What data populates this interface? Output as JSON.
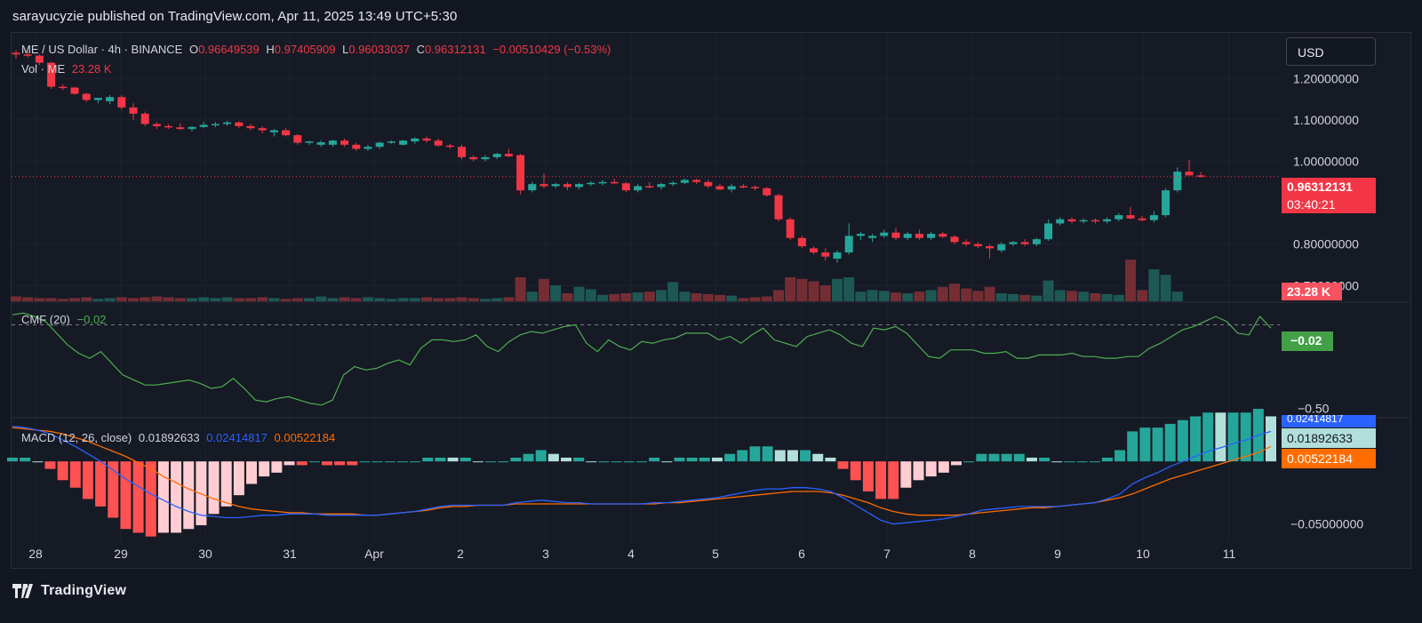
{
  "header": {
    "publisher": "sarayucyzie published on TradingView.com, Apr 11, 2025 13:49 UTC+5:30",
    "brand": "TradingView"
  },
  "controls": {
    "currency_label": "USD"
  },
  "legend": {
    "symbol": "ME / US Dollar · 4h · BINANCE",
    "o_label": "O",
    "o_value": "0.96649539",
    "h_label": "H",
    "h_value": "0.97405909",
    "l_label": "L",
    "l_value": "0.96033037",
    "c_label": "C",
    "c_value": "0.96312131",
    "change": "−0.00510429 (−0.53%)",
    "vol_label": "Vol · ME",
    "vol_value": "23.28 K",
    "cmf_label": "CMF (20)",
    "cmf_value": "−0.02",
    "macd_label": "MACD (12, 26, close)",
    "macd_value": "0.01892633",
    "signal_value": "0.02414817",
    "hist_value": "0.00522184"
  },
  "price_tags": {
    "last_price": "0.96312131",
    "countdown": "03:40:21",
    "volume": "23.28 K",
    "cmf": "−0.02",
    "macd_blue": "0.02414817",
    "macd_line": "0.01892633",
    "macd_orange": "0.00522184"
  },
  "colors": {
    "up": "#26a69a",
    "down": "#f23645",
    "cmf": "#4caf50",
    "macd": "#2962ff",
    "signal": "#ff6d00",
    "hist_up_strong": "#26a69a",
    "hist_up_weak": "#b2dfdb",
    "hist_down_strong": "#ff5252",
    "hist_down_weak": "#ffcdd2"
  },
  "chart_data": [
    {
      "type": "candlestick",
      "title": "ME / US Dollar · 4h · BINANCE",
      "x_ticks": [
        "28",
        "29",
        "30",
        "31",
        "Apr",
        "2",
        "3",
        "4",
        "5",
        "6",
        "7",
        "8",
        "9",
        "10",
        "11"
      ],
      "y_ticks": [
        "1.20000000",
        "1.10000000",
        "1.00000000",
        "0.80000000",
        "0.70000000"
      ],
      "ylim": [
        0.66,
        1.31
      ],
      "candles": [
        [
          1.262,
          1.268,
          1.248,
          1.258
        ],
        [
          1.258,
          1.265,
          1.25,
          1.255
        ],
        [
          1.255,
          1.258,
          1.232,
          1.238
        ],
        [
          1.238,
          1.24,
          1.175,
          1.18
        ],
        [
          1.18,
          1.186,
          1.172,
          1.178
        ],
        [
          1.178,
          1.18,
          1.16,
          1.163
        ],
        [
          1.163,
          1.165,
          1.143,
          1.148
        ],
        [
          1.148,
          1.152,
          1.14,
          1.153
        ],
        [
          1.145,
          1.16,
          1.138,
          1.155
        ],
        [
          1.155,
          1.16,
          1.125,
          1.13
        ],
        [
          1.13,
          1.14,
          1.1,
          1.115
        ],
        [
          1.115,
          1.12,
          1.085,
          1.09
        ],
        [
          1.09,
          1.095,
          1.078,
          1.085
        ],
        [
          1.085,
          1.09,
          1.078,
          1.082
        ],
        [
          1.082,
          1.092,
          1.075,
          1.078
        ],
        [
          1.078,
          1.085,
          1.072,
          1.083
        ],
        [
          1.083,
          1.095,
          1.08,
          1.088
        ],
        [
          1.088,
          1.095,
          1.082,
          1.09
        ],
        [
          1.09,
          1.098,
          1.085,
          1.094
        ],
        [
          1.094,
          1.097,
          1.08,
          1.085
        ],
        [
          1.085,
          1.09,
          1.075,
          1.08
        ],
        [
          1.08,
          1.085,
          1.068,
          1.075
        ],
        [
          1.07,
          1.078,
          1.06,
          1.075
        ],
        [
          1.075,
          1.08,
          1.06,
          1.063
        ],
        [
          1.063,
          1.066,
          1.04,
          1.045
        ],
        [
          1.045,
          1.05,
          1.04,
          1.048
        ],
        [
          1.04,
          1.05,
          1.035,
          1.046
        ],
        [
          1.04,
          1.052,
          1.035,
          1.05
        ],
        [
          1.05,
          1.055,
          1.035,
          1.04
        ],
        [
          1.04,
          1.045,
          1.025,
          1.03
        ],
        [
          1.03,
          1.04,
          1.025,
          1.035
        ],
        [
          1.035,
          1.048,
          1.03,
          1.045
        ],
        [
          1.045,
          1.05,
          1.042,
          1.048
        ],
        [
          1.04,
          1.052,
          1.038,
          1.05
        ],
        [
          1.048,
          1.058,
          1.042,
          1.055
        ],
        [
          1.055,
          1.06,
          1.045,
          1.05
        ],
        [
          1.05,
          1.055,
          1.035,
          1.038
        ],
        [
          1.038,
          1.042,
          1.03,
          1.035
        ],
        [
          1.035,
          1.04,
          1.005,
          1.01
        ],
        [
          1.01,
          1.015,
          1.0,
          1.005
        ],
        [
          1.005,
          1.015,
          1.0,
          1.01
        ],
        [
          1.01,
          1.02,
          1.005,
          1.018
        ],
        [
          1.018,
          1.03,
          1.01,
          1.012
        ],
        [
          1.015,
          1.018,
          0.92,
          0.93
        ],
        [
          0.93,
          0.95,
          0.925,
          0.945
        ],
        [
          0.945,
          0.97,
          0.935,
          0.94
        ],
        [
          0.94,
          0.948,
          0.935,
          0.945
        ],
        [
          0.945,
          0.95,
          0.93,
          0.938
        ],
        [
          0.938,
          0.948,
          0.932,
          0.945
        ],
        [
          0.945,
          0.952,
          0.94,
          0.948
        ],
        [
          0.948,
          0.955,
          0.942,
          0.95
        ],
        [
          0.95,
          0.958,
          0.945,
          0.947
        ],
        [
          0.947,
          0.95,
          0.925,
          0.93
        ],
        [
          0.93,
          0.945,
          0.925,
          0.94
        ],
        [
          0.94,
          0.95,
          0.935,
          0.938
        ],
        [
          0.938,
          0.948,
          0.932,
          0.945
        ],
        [
          0.945,
          0.952,
          0.94,
          0.948
        ],
        [
          0.948,
          0.958,
          0.945,
          0.955
        ],
        [
          0.955,
          0.958,
          0.945,
          0.95
        ],
        [
          0.95,
          0.955,
          0.935,
          0.94
        ],
        [
          0.94,
          0.945,
          0.93,
          0.932
        ],
        [
          0.932,
          0.945,
          0.925,
          0.94
        ],
        [
          0.94,
          0.945,
          0.935,
          0.938
        ],
        [
          0.938,
          0.942,
          0.93,
          0.935
        ],
        [
          0.935,
          0.938,
          0.915,
          0.918
        ],
        [
          0.918,
          0.922,
          0.855,
          0.86
        ],
        [
          0.86,
          0.865,
          0.81,
          0.815
        ],
        [
          0.815,
          0.82,
          0.79,
          0.795
        ],
        [
          0.79,
          0.795,
          0.775,
          0.78
        ],
        [
          0.78,
          0.79,
          0.76,
          0.77
        ],
        [
          0.765,
          0.785,
          0.755,
          0.78
        ],
        [
          0.78,
          0.85,
          0.775,
          0.82
        ],
        [
          0.82,
          0.83,
          0.81,
          0.825
        ],
        [
          0.815,
          0.825,
          0.805,
          0.82
        ],
        [
          0.82,
          0.835,
          0.815,
          0.828
        ],
        [
          0.828,
          0.84,
          0.81,
          0.815
        ],
        [
          0.815,
          0.83,
          0.81,
          0.825
        ],
        [
          0.825,
          0.835,
          0.81,
          0.815
        ],
        [
          0.815,
          0.83,
          0.81,
          0.825
        ],
        [
          0.825,
          0.83,
          0.815,
          0.818
        ],
        [
          0.818,
          0.822,
          0.8,
          0.805
        ],
        [
          0.805,
          0.812,
          0.795,
          0.8
        ],
        [
          0.8,
          0.805,
          0.79,
          0.795
        ],
        [
          0.795,
          0.8,
          0.765,
          0.79
        ],
        [
          0.785,
          0.805,
          0.78,
          0.8
        ],
        [
          0.8,
          0.808,
          0.795,
          0.805
        ],
        [
          0.805,
          0.812,
          0.795,
          0.8
        ],
        [
          0.8,
          0.815,
          0.795,
          0.812
        ],
        [
          0.812,
          0.86,
          0.808,
          0.85
        ],
        [
          0.85,
          0.865,
          0.845,
          0.86
        ],
        [
          0.86,
          0.865,
          0.85,
          0.855
        ],
        [
          0.855,
          0.862,
          0.85,
          0.858
        ],
        [
          0.858,
          0.862,
          0.85,
          0.855
        ],
        [
          0.855,
          0.865,
          0.85,
          0.86
        ],
        [
          0.86,
          0.875,
          0.855,
          0.87
        ],
        [
          0.87,
          0.89,
          0.86,
          0.862
        ],
        [
          0.862,
          0.868,
          0.855,
          0.858
        ],
        [
          0.858,
          0.88,
          0.852,
          0.87
        ],
        [
          0.87,
          0.935,
          0.865,
          0.93
        ],
        [
          0.93,
          0.985,
          0.925,
          0.975
        ],
        [
          0.975,
          1.003,
          0.968,
          0.966
        ],
        [
          0.966,
          0.974,
          0.96,
          0.963
        ]
      ],
      "volume": [
        6,
        5,
        4,
        4,
        3,
        4,
        5,
        3,
        4,
        5,
        4,
        5,
        6,
        5,
        4,
        4,
        5,
        4,
        5,
        4,
        4,
        5,
        4,
        3,
        4,
        4,
        6,
        4,
        5,
        4,
        5,
        4,
        3,
        4,
        4,
        5,
        4,
        4,
        5,
        4,
        3,
        4,
        5,
        30,
        12,
        28,
        20,
        10,
        18,
        15,
        8,
        9,
        10,
        11,
        12,
        14,
        24,
        12,
        10,
        9,
        8,
        7,
        4,
        5,
        6,
        14,
        30,
        28,
        25,
        20,
        28,
        30,
        12,
        14,
        13,
        11,
        10,
        12,
        14,
        18,
        22,
        16,
        13,
        18,
        10,
        9,
        8,
        7,
        26,
        14,
        13,
        12,
        10,
        9,
        8,
        52,
        14,
        40,
        33,
        12
      ],
      "volume_label": "23.28 K"
    },
    {
      "type": "line",
      "title": "CMF (20)",
      "y_ticks": [
        "−0.50"
      ],
      "ylim": [
        -0.55,
        0.13
      ],
      "series": [
        {
          "name": "CMF (20)",
          "values": [
            0.06,
            0.07,
            0.05,
            0.02,
            -0.05,
            -0.12,
            -0.17,
            -0.2,
            -0.16,
            -0.23,
            -0.3,
            -0.33,
            -0.36,
            -0.36,
            -0.35,
            -0.34,
            -0.33,
            -0.35,
            -0.38,
            -0.37,
            -0.32,
            -0.38,
            -0.45,
            -0.46,
            -0.44,
            -0.43,
            -0.45,
            -0.47,
            -0.48,
            -0.45,
            -0.3,
            -0.25,
            -0.27,
            -0.26,
            -0.23,
            -0.21,
            -0.24,
            -0.14,
            -0.09,
            -0.09,
            -0.1,
            -0.09,
            -0.06,
            -0.13,
            -0.16,
            -0.1,
            -0.06,
            -0.04,
            -0.05,
            -0.03,
            -0.01,
            0.0,
            -0.11,
            -0.16,
            -0.09,
            -0.13,
            -0.15,
            -0.1,
            -0.11,
            -0.09,
            -0.08,
            -0.05,
            -0.05,
            -0.05,
            -0.09,
            -0.07,
            -0.11,
            -0.06,
            -0.02,
            -0.09,
            -0.11,
            -0.13,
            -0.07,
            -0.05,
            -0.03,
            -0.06,
            -0.11,
            -0.13,
            -0.02,
            -0.03,
            -0.01,
            -0.05,
            -0.12,
            -0.19,
            -0.2,
            -0.15,
            -0.15,
            -0.15,
            -0.17,
            -0.17,
            -0.16,
            -0.2,
            -0.2,
            -0.18,
            -0.18,
            -0.18,
            -0.17,
            -0.19,
            -0.19,
            -0.2,
            -0.2,
            -0.19,
            -0.19,
            -0.14,
            -0.11,
            -0.07,
            -0.03,
            -0.01,
            0.02,
            0.05,
            0.02,
            -0.05,
            -0.06,
            0.05,
            -0.02
          ]
        }
      ]
    },
    {
      "type": "line+bar",
      "title": "MACD (12, 26, close)",
      "y_ticks": [
        "−0.05000000"
      ],
      "ylim": [
        -0.0645,
        0.0342
      ],
      "series": [
        {
          "name": "MACD",
          "values": [
            0.028,
            0.027,
            0.025,
            0.022,
            0.017,
            0.012,
            0.006,
            0.0,
            -0.007,
            -0.014,
            -0.02,
            -0.026,
            -0.031,
            -0.036,
            -0.04,
            -0.043,
            -0.044,
            -0.045,
            -0.045,
            -0.044,
            -0.043,
            -0.043,
            -0.042,
            -0.042,
            -0.042,
            -0.043,
            -0.043,
            -0.043,
            -0.043,
            -0.043,
            -0.042,
            -0.041,
            -0.04,
            -0.038,
            -0.036,
            -0.035,
            -0.035,
            -0.035,
            -0.035,
            -0.035,
            -0.033,
            -0.032,
            -0.031,
            -0.032,
            -0.033,
            -0.033,
            -0.034,
            -0.034,
            -0.034,
            -0.034,
            -0.034,
            -0.033,
            -0.033,
            -0.032,
            -0.031,
            -0.03,
            -0.029,
            -0.027,
            -0.025,
            -0.023,
            -0.022,
            -0.022,
            -0.021,
            -0.021,
            -0.022,
            -0.024,
            -0.029,
            -0.035,
            -0.041,
            -0.047,
            -0.05,
            -0.049,
            -0.048,
            -0.047,
            -0.046,
            -0.044,
            -0.042,
            -0.039,
            -0.038,
            -0.037,
            -0.036,
            -0.036,
            -0.036,
            -0.036,
            -0.035,
            -0.034,
            -0.033,
            -0.03,
            -0.026,
            -0.018,
            -0.013,
            -0.009,
            -0.004,
            0.0,
            0.004,
            0.008,
            0.011,
            0.014,
            0.017,
            0.021,
            0.024
          ]
        },
        {
          "name": "Signal",
          "values": [
            0.027,
            0.026,
            0.025,
            0.024,
            0.022,
            0.019,
            0.016,
            0.012,
            0.008,
            0.004,
            -0.001,
            -0.006,
            -0.012,
            -0.017,
            -0.022,
            -0.026,
            -0.03,
            -0.033,
            -0.036,
            -0.038,
            -0.039,
            -0.04,
            -0.041,
            -0.041,
            -0.042,
            -0.042,
            -0.042,
            -0.042,
            -0.043,
            -0.043,
            -0.042,
            -0.041,
            -0.04,
            -0.039,
            -0.037,
            -0.036,
            -0.036,
            -0.035,
            -0.035,
            -0.035,
            -0.034,
            -0.034,
            -0.034,
            -0.034,
            -0.034,
            -0.034,
            -0.034,
            -0.034,
            -0.034,
            -0.034,
            -0.034,
            -0.034,
            -0.033,
            -0.033,
            -0.032,
            -0.031,
            -0.03,
            -0.029,
            -0.028,
            -0.027,
            -0.026,
            -0.025,
            -0.024,
            -0.024,
            -0.024,
            -0.025,
            -0.027,
            -0.03,
            -0.033,
            -0.037,
            -0.04,
            -0.042,
            -0.043,
            -0.043,
            -0.043,
            -0.043,
            -0.042,
            -0.041,
            -0.04,
            -0.039,
            -0.038,
            -0.037,
            -0.037,
            -0.036,
            -0.035,
            -0.034,
            -0.033,
            -0.031,
            -0.029,
            -0.026,
            -0.022,
            -0.018,
            -0.014,
            -0.011,
            -0.008,
            -0.005,
            -0.002,
            0.001,
            0.004,
            0.007,
            0.012
          ]
        }
      ]
    }
  ]
}
